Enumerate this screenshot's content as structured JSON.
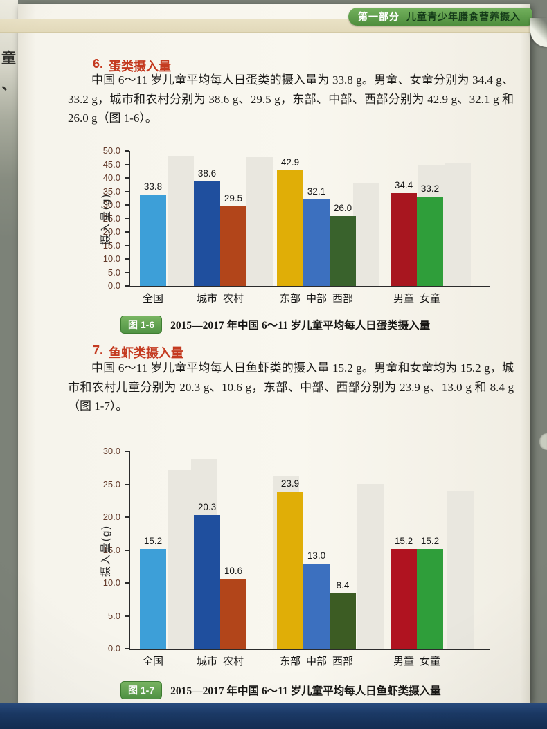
{
  "header": {
    "part_label": "第一部分",
    "part_title": "儿童青少年膳食营养摄入"
  },
  "margin_fragments": [
    "童",
    "、"
  ],
  "sections": [
    {
      "number": "6.",
      "title": "蛋类摄入量",
      "body": "中国 6～11 岁儿童平均每人日蛋类的摄入量为 33.8 g。男童、女童分别为 34.4 g、33.2 g，城市和农村分别为 38.6 g、29.5 g，东部、中部、西部分别为 42.9 g、32.1 g 和 26.0 g（图 1-6）。",
      "figure_tag": "图 1-6",
      "figure_caption": "2015—2017 年中国 6～11 岁儿童平均每人日蛋类摄入量"
    },
    {
      "number": "7.",
      "title": "鱼虾类摄入量",
      "body": "中国 6～11 岁儿童平均每人日鱼虾类的摄入量 15.2 g。男童和女童均为 15.2 g，城市和农村儿童分别为 20.3 g、10.6 g，东部、中部、西部分别为 23.9 g、13.0 g 和 8.4 g（图 1-7）。",
      "figure_tag": "图 1-7",
      "figure_caption": "2015—2017 年中国 6～11 岁儿童平均每人日鱼虾类摄入量"
    }
  ],
  "chart_data": [
    {
      "type": "bar",
      "title": "2015—2017 年中国 6～11 岁儿童平均每人日蛋类摄入量",
      "xlabel": "",
      "ylabel": "摄入量(g)",
      "ylim": [
        0,
        50
      ],
      "ytick_step": 5,
      "grid": false,
      "legend": "none",
      "categories": [
        "全国",
        "城市",
        "农村",
        "东部",
        "中部",
        "西部",
        "男童",
        "女童"
      ],
      "values": [
        33.8,
        38.6,
        29.5,
        42.9,
        32.1,
        26.0,
        34.4,
        33.2
      ],
      "bar_colors": [
        "#3d9fd8",
        "#1f4f9e",
        "#b2451a",
        "#e0ae07",
        "#3c70bf",
        "#39622c",
        "#a8161f",
        "#2f9e3a"
      ]
    },
    {
      "type": "bar",
      "title": "2015—2017 年中国 6～11 岁儿童平均每人日鱼虾类摄入量",
      "xlabel": "",
      "ylabel": "摄入量(g)",
      "ylim": [
        0,
        30
      ],
      "ytick_step": 5,
      "grid": false,
      "legend": "none",
      "categories": [
        "全国",
        "城市",
        "农村",
        "东部",
        "中部",
        "西部",
        "男童",
        "女童"
      ],
      "values": [
        15.2,
        20.3,
        10.6,
        23.9,
        13.0,
        8.4,
        15.2,
        15.2
      ],
      "bar_colors": [
        "#3d9fd8",
        "#1f4f9e",
        "#b2451a",
        "#e0ae07",
        "#3c70bf",
        "#3c5c23",
        "#b01320",
        "#2f9e3a"
      ]
    }
  ],
  "colors": {
    "heading_red": "#c43a20",
    "band_cream": "#e7dfc1",
    "pill_green": "#4e8d3c",
    "figure_tag_green": "#509344",
    "page_background": "#f8f6ef",
    "book_edge_navy": "#1b3a67"
  }
}
